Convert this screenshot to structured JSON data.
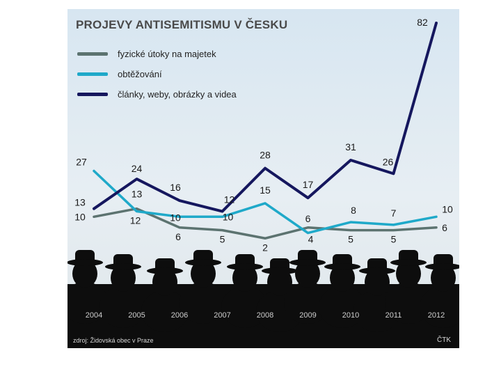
{
  "chart_data": {
    "type": "line",
    "title": "PROJEVY ANTISEMITISMU V ČESKU",
    "categories": [
      "2004",
      "2005",
      "2006",
      "2007",
      "2008",
      "2009",
      "2010",
      "2011",
      "2012"
    ],
    "series": [
      {
        "name": "fyzické útoky na majetek",
        "color": "#5c7370",
        "values": [
          10,
          13,
          6,
          5,
          2,
          6,
          5,
          5,
          6
        ]
      },
      {
        "name": "obtěžování",
        "color": "#1fa9c9",
        "values": [
          27,
          12,
          10,
          10,
          15,
          4,
          8,
          7,
          10
        ]
      },
      {
        "name": "články, weby, obrázky a videa",
        "color": "#15175e",
        "values": [
          13,
          24,
          16,
          12,
          28,
          17,
          31,
          26,
          82
        ]
      }
    ],
    "legend_position": "top-left",
    "grid": false,
    "source": "zdroj: Židovská obec v Praze",
    "agency": "ČTK"
  }
}
